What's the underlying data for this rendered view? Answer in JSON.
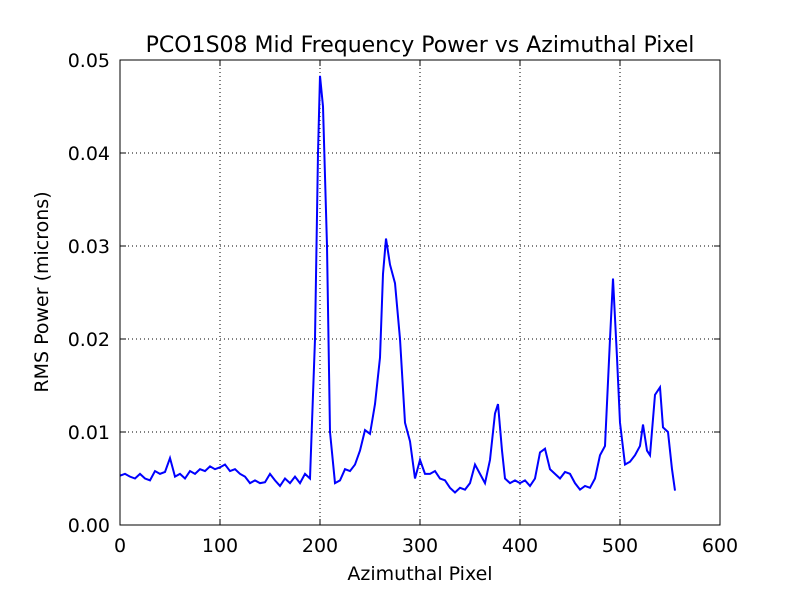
{
  "chart_data": {
    "type": "line",
    "title": "PCO1S08 Mid Frequency Power vs Azimuthal Pixel",
    "xlabel": "Azimuthal Pixel",
    "ylabel": "RMS Power (microns)",
    "x": [
      0,
      5,
      10,
      15,
      20,
      25,
      30,
      35,
      40,
      45,
      50,
      55,
      60,
      65,
      70,
      75,
      80,
      85,
      90,
      95,
      100,
      105,
      110,
      115,
      120,
      125,
      130,
      135,
      140,
      145,
      150,
      155,
      160,
      165,
      170,
      175,
      180,
      185,
      190,
      195,
      198,
      200,
      203,
      207,
      210,
      215,
      220,
      225,
      230,
      235,
      240,
      245,
      250,
      255,
      260,
      263,
      266,
      270,
      275,
      280,
      285,
      290,
      295,
      300,
      305,
      310,
      315,
      320,
      325,
      330,
      335,
      340,
      345,
      350,
      355,
      360,
      365,
      370,
      375,
      378,
      382,
      385,
      390,
      395,
      400,
      405,
      410,
      415,
      420,
      425,
      430,
      435,
      440,
      445,
      450,
      455,
      460,
      465,
      470,
      475,
      480,
      485,
      490,
      493,
      497,
      500,
      505,
      510,
      515,
      520,
      523,
      527,
      530,
      535,
      540,
      543,
      548,
      552,
      555
    ],
    "series": [
      {
        "name": "RMS Power",
        "color": "#0000ff",
        "values": [
          0.0053,
          0.0055,
          0.0052,
          0.005,
          0.0055,
          0.005,
          0.0048,
          0.0058,
          0.0055,
          0.0057,
          0.0072,
          0.0052,
          0.0055,
          0.005,
          0.0058,
          0.0055,
          0.006,
          0.0058,
          0.0063,
          0.006,
          0.0062,
          0.0065,
          0.0058,
          0.006,
          0.0055,
          0.0052,
          0.0045,
          0.0048,
          0.0045,
          0.0046,
          0.0055,
          0.0048,
          0.0042,
          0.005,
          0.0045,
          0.0052,
          0.0045,
          0.0055,
          0.005,
          0.02,
          0.04,
          0.0483,
          0.045,
          0.03,
          0.01,
          0.0045,
          0.0048,
          0.006,
          0.0058,
          0.0065,
          0.008,
          0.0102,
          0.0098,
          0.013,
          0.018,
          0.027,
          0.0308,
          0.028,
          0.026,
          0.02,
          0.011,
          0.009,
          0.005,
          0.007,
          0.0055,
          0.0055,
          0.0058,
          0.005,
          0.0048,
          0.004,
          0.0035,
          0.004,
          0.0038,
          0.0045,
          0.0065,
          0.0055,
          0.0045,
          0.007,
          0.012,
          0.013,
          0.008,
          0.005,
          0.0045,
          0.0048,
          0.0045,
          0.0048,
          0.0042,
          0.005,
          0.0078,
          0.0082,
          0.006,
          0.0055,
          0.005,
          0.0057,
          0.0055,
          0.0045,
          0.0038,
          0.0042,
          0.004,
          0.005,
          0.0075,
          0.0085,
          0.02,
          0.0265,
          0.018,
          0.011,
          0.0065,
          0.0068,
          0.0075,
          0.0085,
          0.0108,
          0.008,
          0.0075,
          0.014,
          0.0148,
          0.0105,
          0.01,
          0.006,
          0.0037
        ]
      }
    ],
    "xlim": [
      0,
      600
    ],
    "xticks": [
      0,
      100,
      200,
      300,
      400,
      500,
      600
    ],
    "ylim": [
      0,
      0.05
    ],
    "yticks": [
      {
        "value": 0,
        "label": "0.00"
      },
      {
        "value": 0.01,
        "label": "0.01"
      },
      {
        "value": 0.02,
        "label": "0.02"
      },
      {
        "value": 0.03,
        "label": "0.03"
      },
      {
        "value": 0.04,
        "label": "0.04"
      },
      0.05
    ],
    "grid": true
  }
}
